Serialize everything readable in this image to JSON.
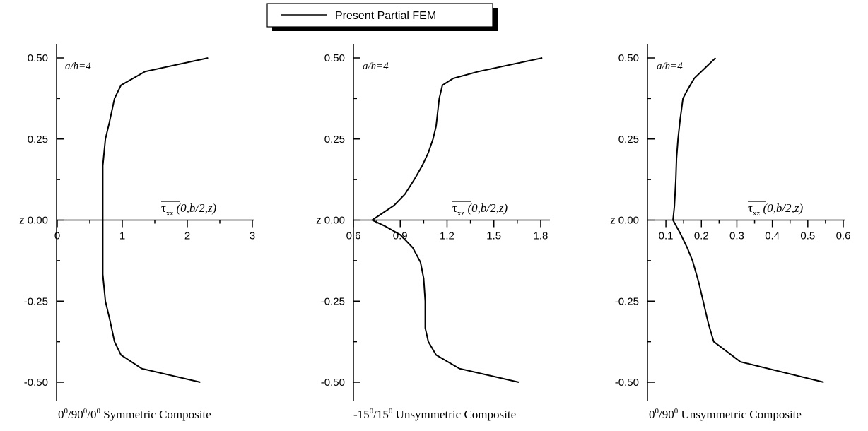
{
  "legend": {
    "label": "Present Partial FEM"
  },
  "chart_data": [
    {
      "type": "line",
      "title": "",
      "caption": {
        "prefix": "0",
        "sup1": "0",
        "mid1": "/90",
        "sup2": "0",
        "mid2": "/0",
        "sup3": "0",
        "rest": " Symmetric Composite"
      },
      "annotation": "a/h=4",
      "xlabel": {
        "symbol": "τ",
        "sub": "xz",
        "args": " (0,b/2,z)"
      },
      "ylabel": "z",
      "xlim": [
        0,
        3
      ],
      "ylim": [
        -0.5,
        0.5
      ],
      "x_ticks": [
        "0",
        "1",
        "2",
        "3"
      ],
      "x_tick_values": [
        0,
        1,
        2,
        3
      ],
      "y_ticks": [
        "-0.50",
        "-0.25",
        "z 0.00",
        "0.25",
        "0.50"
      ],
      "y_tick_values": [
        -0.5,
        -0.25,
        0,
        0.25,
        0.5
      ],
      "series": [
        {
          "x": [
            2.2,
            1.3,
            0.98,
            0.88,
            0.8,
            0.74,
            0.7,
            0.7,
            0.74,
            0.8,
            0.88,
            0.98,
            1.35,
            2.32
          ],
          "y": [
            -0.5,
            -0.458,
            -0.416,
            -0.375,
            -0.3,
            -0.25,
            -0.167,
            0.167,
            0.25,
            0.3,
            0.375,
            0.416,
            0.458,
            0.5
          ]
        }
      ]
    },
    {
      "type": "line",
      "title": "",
      "caption": {
        "prefix": "-15",
        "sup1": "0",
        "mid1": "/15",
        "sup2": "0",
        "mid2": "",
        "sup3": "",
        "rest": " Unsymmetric Composite"
      },
      "annotation": "a/h=4",
      "xlabel": {
        "symbol": "τ",
        "sub": "xz",
        "args": " (0,b/2,z)"
      },
      "ylabel": "z",
      "xlim": [
        0.6,
        1.85
      ],
      "ylim": [
        -0.5,
        0.5
      ],
      "x_ticks": [
        "0.6",
        "0.9",
        "1.2",
        "1.5",
        "1.8"
      ],
      "x_tick_values": [
        0.6,
        0.9,
        1.2,
        1.5,
        1.8
      ],
      "y_ticks": [
        "-0.50",
        "-0.25",
        "z 0.00",
        "0.25",
        "0.50"
      ],
      "y_tick_values": [
        -0.5,
        -0.25,
        0,
        0.25,
        0.5
      ],
      "series": [
        {
          "x": [
            1.66,
            1.28,
            1.13,
            1.08,
            1.06,
            1.06,
            1.05,
            1.03,
            0.98,
            0.9,
            0.8,
            0.72,
            0.86,
            0.93,
            0.99,
            1.04,
            1.08,
            1.11,
            1.13,
            1.14,
            1.15,
            1.17,
            1.24,
            1.4,
            1.81
          ],
          "y": [
            -0.5,
            -0.458,
            -0.416,
            -0.375,
            -0.333,
            -0.25,
            -0.18,
            -0.13,
            -0.085,
            -0.045,
            -0.018,
            0,
            0.045,
            0.08,
            0.125,
            0.167,
            0.208,
            0.25,
            0.29,
            0.333,
            0.375,
            0.416,
            0.437,
            0.458,
            0.5
          ]
        }
      ]
    },
    {
      "type": "line",
      "title": "",
      "caption": {
        "prefix": "0",
        "sup1": "0",
        "mid1": "/90",
        "sup2": "0",
        "mid2": "",
        "sup3": "",
        "rest": " Unsymmetric Composite"
      },
      "annotation": "a/h=4",
      "xlabel": {
        "symbol": "τ",
        "sub": "xz",
        "args": " (0,b/2,z)"
      },
      "ylabel": "z",
      "xlim": [
        0.05,
        0.6
      ],
      "ylim": [
        -0.5,
        0.5
      ],
      "x_ticks": [
        "0.1",
        "0.2",
        "0.3",
        "0.4",
        "0.5",
        "0.6"
      ],
      "x_tick_values": [
        0.1,
        0.2,
        0.3,
        0.4,
        0.5,
        0.6
      ],
      "y_ticks": [
        "-0.50",
        "-0.25",
        "z 0.00",
        "0.25",
        "0.50"
      ],
      "y_tick_values": [
        -0.5,
        -0.25,
        0,
        0.25,
        0.5
      ],
      "series": [
        {
          "x": [
            0.545,
            0.31,
            0.235,
            0.22,
            0.205,
            0.192,
            0.175,
            0.16,
            0.14,
            0.12,
            0.124,
            0.126,
            0.128,
            0.13,
            0.134,
            0.14,
            0.148,
            0.16,
            0.18,
            0.24
          ],
          "y": [
            -0.5,
            -0.437,
            -0.375,
            -0.32,
            -0.25,
            -0.19,
            -0.125,
            -0.085,
            -0.04,
            0,
            0.042,
            0.083,
            0.125,
            0.19,
            0.25,
            0.31,
            0.375,
            0.4,
            0.437,
            0.5
          ]
        }
      ]
    }
  ]
}
